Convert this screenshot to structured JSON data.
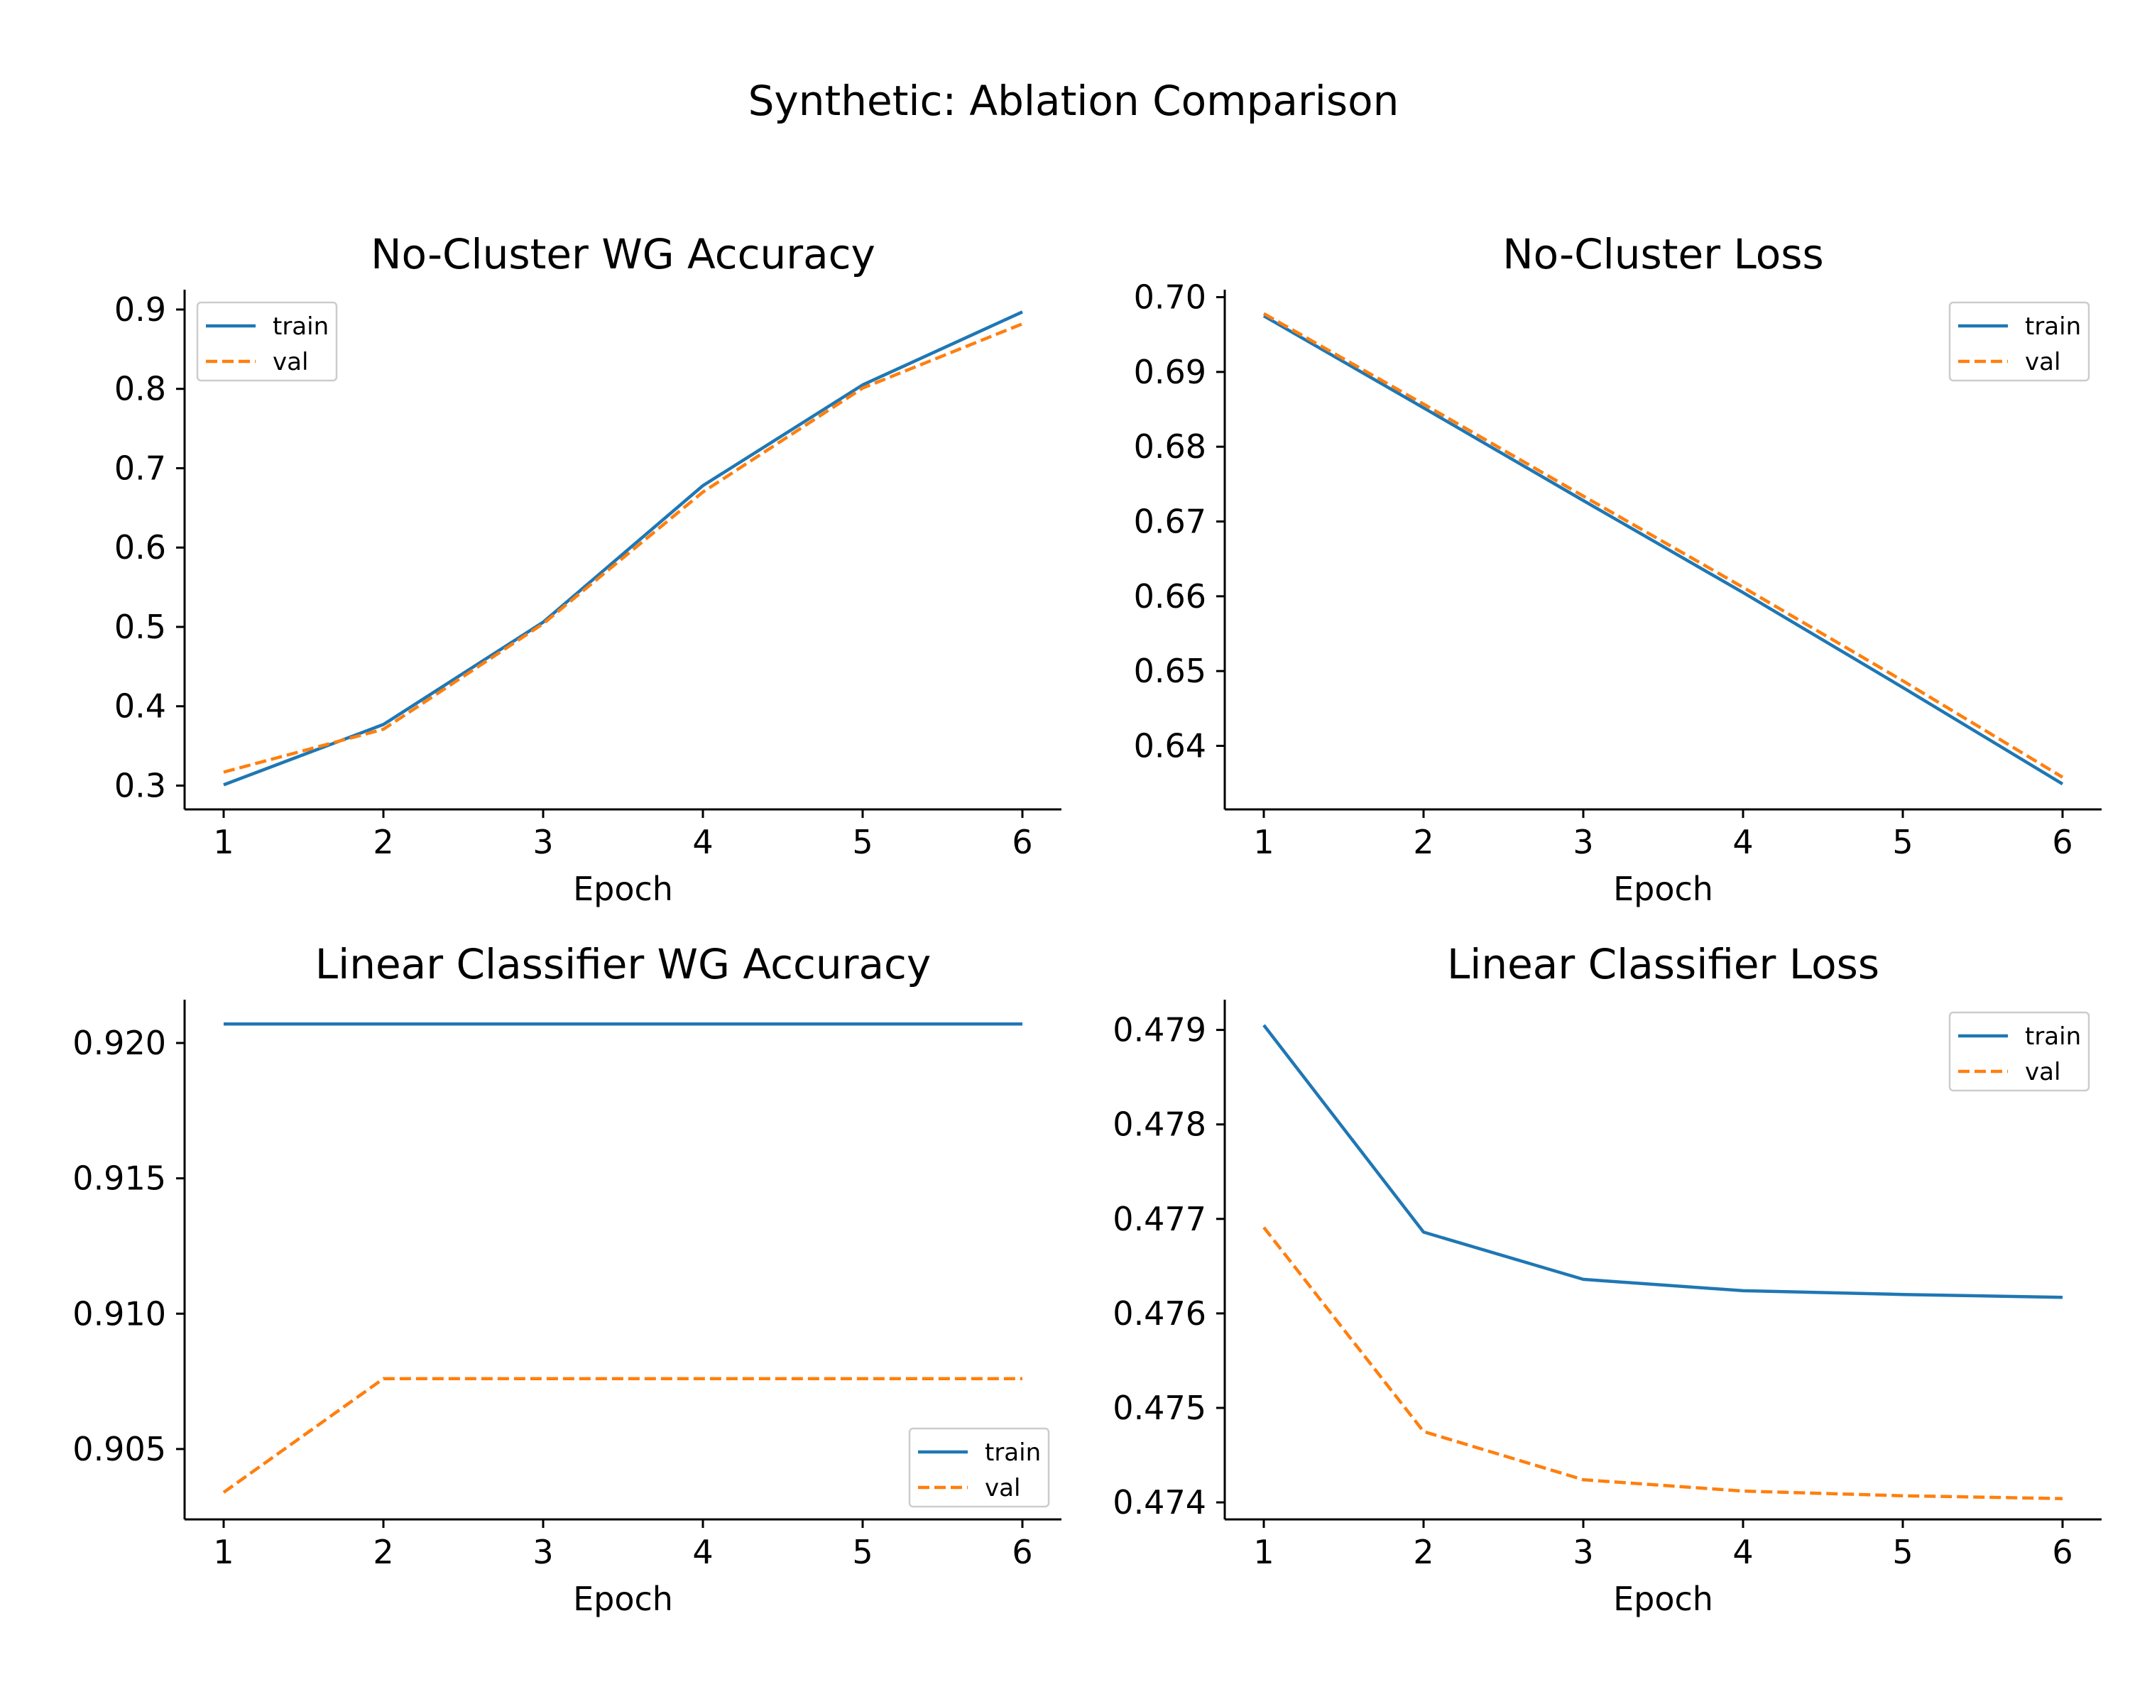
{
  "suptitle": "Synthetic: Ablation Comparison",
  "colors": {
    "train": "#1f77b4",
    "val": "#ff7f0e"
  },
  "chart_data": [
    {
      "type": "line",
      "title": "No-Cluster WG Accuracy",
      "xlabel": "Epoch",
      "ylabel": "",
      "x": [
        1,
        2,
        3,
        4,
        5,
        6
      ],
      "xticks": [
        "1",
        "2",
        "3",
        "4",
        "5",
        "6"
      ],
      "ylim": [
        0.27,
        0.925
      ],
      "yticks": [
        "0.3",
        "0.4",
        "0.5",
        "0.6",
        "0.7",
        "0.8",
        "0.9"
      ],
      "legend": "upper left",
      "grid": false,
      "series": [
        {
          "name": "train",
          "style": "solid",
          "values": [
            0.301,
            0.377,
            0.506,
            0.678,
            0.805,
            0.897
          ]
        },
        {
          "name": "val",
          "style": "dashed",
          "values": [
            0.317,
            0.371,
            0.504,
            0.67,
            0.801,
            0.882
          ]
        }
      ]
    },
    {
      "type": "line",
      "title": "No-Cluster Loss",
      "xlabel": "Epoch",
      "ylabel": "",
      "x": [
        1,
        2,
        3,
        4,
        5,
        6
      ],
      "xticks": [
        "1",
        "2",
        "3",
        "4",
        "5",
        "6"
      ],
      "ylim": [
        0.6315,
        0.701
      ],
      "yticks": [
        "0.64",
        "0.65",
        "0.66",
        "0.67",
        "0.68",
        "0.69",
        "0.70"
      ],
      "legend": "upper right",
      "grid": false,
      "series": [
        {
          "name": "train",
          "style": "solid",
          "values": [
            0.6975,
            0.6852,
            0.6728,
            0.6605,
            0.6478,
            0.6349
          ]
        },
        {
          "name": "val",
          "style": "dashed",
          "values": [
            0.6978,
            0.6857,
            0.6734,
            0.6612,
            0.6487,
            0.6358
          ]
        }
      ]
    },
    {
      "type": "line",
      "title": "Linear Classifier WG Accuracy",
      "xlabel": "Epoch",
      "ylabel": "",
      "x": [
        1,
        2,
        3,
        4,
        5,
        6
      ],
      "xticks": [
        "1",
        "2",
        "3",
        "4",
        "5",
        "6"
      ],
      "ylim": [
        0.9024,
        0.9216
      ],
      "yticks": [
        "0.905",
        "0.910",
        "0.915",
        "0.920"
      ],
      "legend": "lower right",
      "grid": false,
      "series": [
        {
          "name": "train",
          "style": "solid",
          "values": [
            0.9207,
            0.9207,
            0.9207,
            0.9207,
            0.9207,
            0.9207
          ]
        },
        {
          "name": "val",
          "style": "dashed",
          "values": [
            0.9034,
            0.9076,
            0.9076,
            0.9076,
            0.9076,
            0.9076
          ]
        }
      ]
    },
    {
      "type": "line",
      "title": "Linear Classifier Loss",
      "xlabel": "Epoch",
      "ylabel": "",
      "x": [
        1,
        2,
        3,
        4,
        5,
        6
      ],
      "xticks": [
        "1",
        "2",
        "3",
        "4",
        "5",
        "6"
      ],
      "ylim": [
        0.47382,
        0.47932
      ],
      "yticks": [
        "0.474",
        "0.475",
        "0.476",
        "0.477",
        "0.478",
        "0.479"
      ],
      "legend": "upper right",
      "grid": false,
      "series": [
        {
          "name": "train",
          "style": "solid",
          "values": [
            0.47905,
            0.47686,
            0.47636,
            0.47624,
            0.4762,
            0.47617
          ]
        },
        {
          "name": "val",
          "style": "dashed",
          "values": [
            0.47691,
            0.47475,
            0.47424,
            0.47412,
            0.47407,
            0.47404
          ]
        }
      ]
    }
  ]
}
